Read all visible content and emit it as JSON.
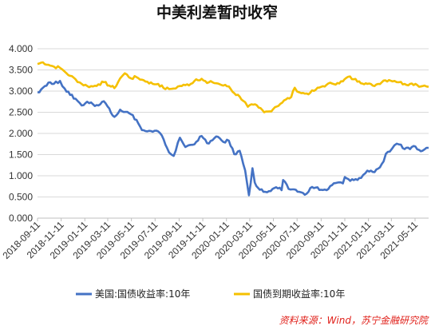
{
  "chart_data": {
    "type": "line",
    "title": "中美利差暂时收窄",
    "xlabel": "",
    "ylabel": "",
    "ylim": [
      0,
      4
    ],
    "yticks": [
      "4.000",
      "3.500",
      "3.000",
      "2.500",
      "2.000",
      "1.500",
      "1.000",
      "0.500",
      "0.000"
    ],
    "xticks": [
      "2018-09-11",
      "2018-11-11",
      "2019-01-11",
      "2019-03-11",
      "2019-05-11",
      "2019-07-11",
      "2019-09-11",
      "2019-11-11",
      "2020-01-11",
      "2020-03-11",
      "2020-05-11",
      "2020-07-11",
      "2020-09-11",
      "2020-11-11",
      "2021-01-11",
      "2021-03-11",
      "2021-05-11"
    ],
    "x_range": [
      "2018-09-11",
      "2021-06-15"
    ],
    "grid": true,
    "legend_position": "bottom",
    "series": [
      {
        "name": "美国:国债收益率:10年",
        "color": "#4472c4",
        "points": [
          [
            "2018-09-11",
            2.97
          ],
          [
            "2018-09-25",
            3.08
          ],
          [
            "2018-10-09",
            3.2
          ],
          [
            "2018-10-23",
            3.17
          ],
          [
            "2018-11-08",
            3.24
          ],
          [
            "2018-11-20",
            3.06
          ],
          [
            "2018-12-04",
            2.91
          ],
          [
            "2018-12-18",
            2.82
          ],
          [
            "2019-01-03",
            2.66
          ],
          [
            "2019-01-17",
            2.75
          ],
          [
            "2019-02-01",
            2.69
          ],
          [
            "2019-02-15",
            2.66
          ],
          [
            "2019-03-01",
            2.76
          ],
          [
            "2019-03-15",
            2.59
          ],
          [
            "2019-03-28",
            2.39
          ],
          [
            "2019-04-12",
            2.56
          ],
          [
            "2019-04-26",
            2.51
          ],
          [
            "2019-05-10",
            2.45
          ],
          [
            "2019-05-24",
            2.32
          ],
          [
            "2019-06-07",
            2.08
          ],
          [
            "2019-06-21",
            2.05
          ],
          [
            "2019-07-05",
            2.04
          ],
          [
            "2019-07-19",
            2.05
          ],
          [
            "2019-08-02",
            1.86
          ],
          [
            "2019-08-16",
            1.55
          ],
          [
            "2019-08-28",
            1.47
          ],
          [
            "2019-09-13",
            1.9
          ],
          [
            "2019-09-27",
            1.68
          ],
          [
            "2019-10-11",
            1.73
          ],
          [
            "2019-10-25",
            1.8
          ],
          [
            "2019-11-08",
            1.94
          ],
          [
            "2019-11-22",
            1.77
          ],
          [
            "2019-12-06",
            1.84
          ],
          [
            "2019-12-20",
            1.92
          ],
          [
            "2020-01-03",
            1.8
          ],
          [
            "2020-01-17",
            1.83
          ],
          [
            "2020-01-31",
            1.51
          ],
          [
            "2020-02-14",
            1.59
          ],
          [
            "2020-02-28",
            1.13
          ],
          [
            "2020-03-06",
            0.71
          ],
          [
            "2020-03-09",
            0.54
          ],
          [
            "2020-03-18",
            1.18
          ],
          [
            "2020-03-24",
            0.84
          ],
          [
            "2020-04-06",
            0.67
          ],
          [
            "2020-04-20",
            0.62
          ],
          [
            "2020-05-04",
            0.64
          ],
          [
            "2020-05-18",
            0.73
          ],
          [
            "2020-06-01",
            0.66
          ],
          [
            "2020-06-05",
            0.9
          ],
          [
            "2020-06-19",
            0.69
          ],
          [
            "2020-07-03",
            0.68
          ],
          [
            "2020-07-17",
            0.62
          ],
          [
            "2020-07-31",
            0.55
          ],
          [
            "2020-08-14",
            0.71
          ],
          [
            "2020-08-28",
            0.72
          ],
          [
            "2020-09-11",
            0.67
          ],
          [
            "2020-09-25",
            0.66
          ],
          [
            "2020-10-09",
            0.78
          ],
          [
            "2020-10-23",
            0.84
          ],
          [
            "2020-11-06",
            0.82
          ],
          [
            "2020-11-11",
            0.97
          ],
          [
            "2020-11-25",
            0.88
          ],
          [
            "2020-12-09",
            0.92
          ],
          [
            "2020-12-23",
            0.95
          ],
          [
            "2021-01-08",
            1.12
          ],
          [
            "2021-01-22",
            1.09
          ],
          [
            "2021-02-05",
            1.17
          ],
          [
            "2021-02-19",
            1.34
          ],
          [
            "2021-02-25",
            1.52
          ],
          [
            "2021-03-12",
            1.63
          ],
          [
            "2021-03-19",
            1.72
          ],
          [
            "2021-03-31",
            1.74
          ],
          [
            "2021-04-14",
            1.63
          ],
          [
            "2021-04-28",
            1.63
          ],
          [
            "2021-05-12",
            1.69
          ],
          [
            "2021-05-26",
            1.58
          ],
          [
            "2021-06-04",
            1.62
          ],
          [
            "2021-06-15",
            1.66
          ]
        ]
      },
      {
        "name": "国债到期收益率:10年",
        "color": "#f5c000",
        "points": [
          [
            "2018-09-11",
            3.64
          ],
          [
            "2018-09-25",
            3.68
          ],
          [
            "2018-10-09",
            3.62
          ],
          [
            "2018-10-23",
            3.58
          ],
          [
            "2018-11-08",
            3.55
          ],
          [
            "2018-11-20",
            3.46
          ],
          [
            "2018-12-04",
            3.36
          ],
          [
            "2018-12-18",
            3.28
          ],
          [
            "2019-01-03",
            3.17
          ],
          [
            "2019-01-17",
            3.12
          ],
          [
            "2019-02-01",
            3.11
          ],
          [
            "2019-02-15",
            3.16
          ],
          [
            "2019-03-01",
            3.21
          ],
          [
            "2019-03-15",
            3.13
          ],
          [
            "2019-03-28",
            3.07
          ],
          [
            "2019-04-12",
            3.3
          ],
          [
            "2019-04-24",
            3.42
          ],
          [
            "2019-05-10",
            3.3
          ],
          [
            "2019-05-24",
            3.33
          ],
          [
            "2019-06-07",
            3.27
          ],
          [
            "2019-06-21",
            3.22
          ],
          [
            "2019-07-05",
            3.17
          ],
          [
            "2019-07-19",
            3.17
          ],
          [
            "2019-08-02",
            3.07
          ],
          [
            "2019-08-16",
            3.05
          ],
          [
            "2019-08-28",
            3.06
          ],
          [
            "2019-09-13",
            3.12
          ],
          [
            "2019-09-27",
            3.14
          ],
          [
            "2019-10-11",
            3.17
          ],
          [
            "2019-10-25",
            3.28
          ],
          [
            "2019-11-08",
            3.29
          ],
          [
            "2019-11-22",
            3.19
          ],
          [
            "2019-12-06",
            3.21
          ],
          [
            "2019-12-20",
            3.18
          ],
          [
            "2020-01-03",
            3.13
          ],
          [
            "2020-01-17",
            3.11
          ],
          [
            "2020-01-31",
            2.95
          ],
          [
            "2020-02-14",
            2.87
          ],
          [
            "2020-02-28",
            2.74
          ],
          [
            "2020-03-06",
            2.63
          ],
          [
            "2020-03-20",
            2.68
          ],
          [
            "2020-04-03",
            2.61
          ],
          [
            "2020-04-17",
            2.5
          ],
          [
            "2020-05-01",
            2.52
          ],
          [
            "2020-05-15",
            2.62
          ],
          [
            "2020-05-29",
            2.7
          ],
          [
            "2020-06-12",
            2.8
          ],
          [
            "2020-06-26",
            2.86
          ],
          [
            "2020-07-05",
            3.08
          ],
          [
            "2020-07-17",
            2.97
          ],
          [
            "2020-07-31",
            2.94
          ],
          [
            "2020-08-14",
            2.96
          ],
          [
            "2020-08-28",
            3.03
          ],
          [
            "2020-09-11",
            3.1
          ],
          [
            "2020-09-25",
            3.15
          ],
          [
            "2020-10-09",
            3.18
          ],
          [
            "2020-10-23",
            3.19
          ],
          [
            "2020-11-06",
            3.23
          ],
          [
            "2020-11-20",
            3.34
          ],
          [
            "2020-12-04",
            3.28
          ],
          [
            "2020-12-18",
            3.23
          ],
          [
            "2021-01-08",
            3.17
          ],
          [
            "2021-01-22",
            3.13
          ],
          [
            "2021-02-05",
            3.17
          ],
          [
            "2021-02-19",
            3.25
          ],
          [
            "2021-03-05",
            3.26
          ],
          [
            "2021-03-19",
            3.24
          ],
          [
            "2021-03-31",
            3.21
          ],
          [
            "2021-04-14",
            3.17
          ],
          [
            "2021-04-28",
            3.17
          ],
          [
            "2021-05-12",
            3.17
          ],
          [
            "2021-05-26",
            3.11
          ],
          [
            "2021-06-04",
            3.13
          ],
          [
            "2021-06-15",
            3.1
          ]
        ]
      }
    ],
    "source": "资料来源：Wind，苏宁金融研究院"
  }
}
